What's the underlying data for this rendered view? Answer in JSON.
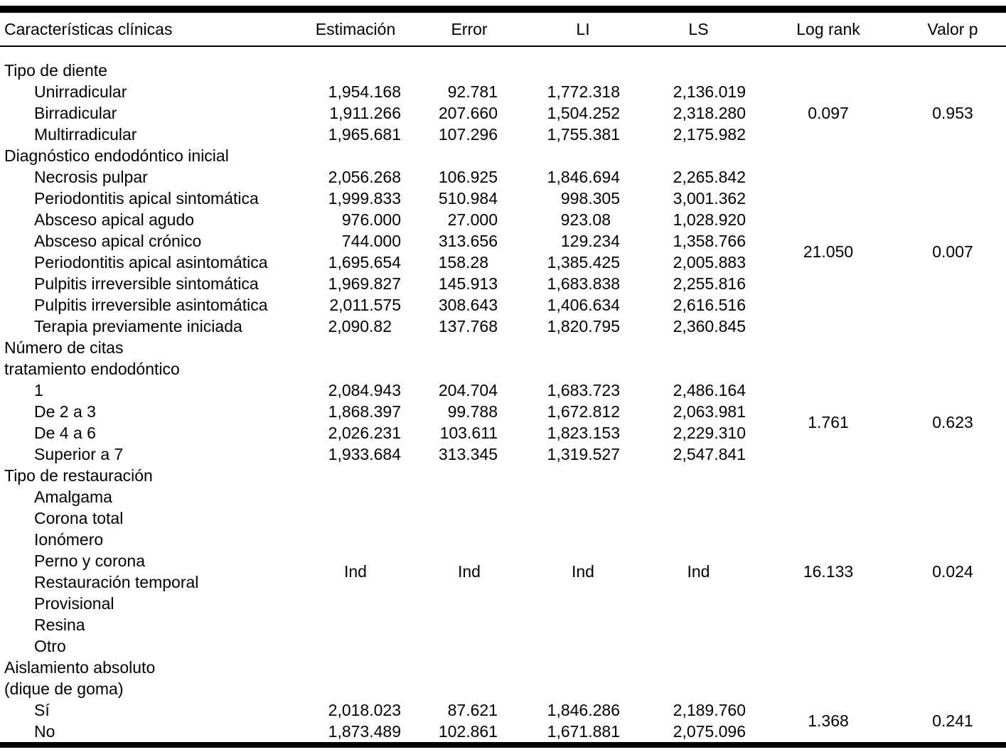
{
  "table": {
    "columns": [
      "Características clínicas",
      "Estimación",
      "Error",
      "LI",
      "LS",
      "Log rank",
      "Valor p"
    ],
    "groups": [
      {
        "label_lines": [
          "Tipo de diente"
        ],
        "rows": [
          {
            "label": "Unirradicular",
            "estimacion": "1,954.168",
            "error": "92.781",
            "li": "1,772.318",
            "ls": "2,136.019"
          },
          {
            "label": "Birradicular",
            "estimacion": "1,911.266",
            "error": "207.660",
            "li": "1,504.252",
            "ls": "2,318.280"
          },
          {
            "label": "Multirradicular",
            "estimacion": "1,965.681",
            "error": "107.296",
            "li": "1,755.381",
            "ls": "2,175.982"
          }
        ],
        "log_rank": "0.097",
        "valor_p": "0.953"
      },
      {
        "label_lines": [
          "Diagnóstico endodóntico inicial"
        ],
        "rows": [
          {
            "label": "Necrosis pulpar",
            "estimacion": "2,056.268",
            "error": "106.925",
            "li": "1,846.694",
            "ls": "2,265.842"
          },
          {
            "label": "Periodontitis apical sintomática",
            "estimacion": "1,999.833",
            "error": "510.984",
            "li": "998.305",
            "ls": "3,001.362"
          },
          {
            "label": "Absceso apical agudo",
            "estimacion": "976.000",
            "error": "27.000",
            "li": "923.08",
            "ls": "1,028.920"
          },
          {
            "label": "Absceso apical crónico",
            "estimacion": "744.000",
            "error": "313.656",
            "li": "129.234",
            "ls": "1,358.766"
          },
          {
            "label": "Periodontitis apical asintomática",
            "estimacion": "1,695.654",
            "error": "158.28",
            "li": "1,385.425",
            "ls": "2,005.883"
          },
          {
            "label": "Pulpitis irreversible sintomática",
            "estimacion": "1,969.827",
            "error": "145.913",
            "li": "1,683.838",
            "ls": "2,255.816"
          },
          {
            "label": "Pulpitis irreversible asintomática",
            "estimacion": "2,011.575",
            "error": "308.643",
            "li": "1,406.634",
            "ls": "2,616.516"
          },
          {
            "label": "Terapia previamente iniciada",
            "estimacion": "2,090.82",
            "error": "137.768",
            "li": "1,820.795",
            "ls": "2,360.845"
          }
        ],
        "log_rank": "21.050",
        "valor_p": "0.007"
      },
      {
        "label_lines": [
          "Número de citas",
          "tratamiento endodóntico"
        ],
        "rows": [
          {
            "label": "1",
            "estimacion": "2,084.943",
            "error": "204.704",
            "li": "1,683.723",
            "ls": "2,486.164"
          },
          {
            "label": "De 2 a 3",
            "estimacion": "1,868.397",
            "error": "99.788",
            "li": "1,672.812",
            "ls": "2,063.981"
          },
          {
            "label": "De 4 a 6",
            "estimacion": "2,026.231",
            "error": "103.611",
            "li": "1,823.153",
            "ls": "2,229.310"
          },
          {
            "label": "Superior a 7",
            "estimacion": "1,933.684",
            "error": "313.345",
            "li": "1,319.527",
            "ls": "2,547.841"
          }
        ],
        "log_rank": "1.761",
        "valor_p": "0.623"
      },
      {
        "label_lines": [
          "Tipo de restauración"
        ],
        "rows": [
          {
            "label": "Amalgama"
          },
          {
            "label": "Corona total"
          },
          {
            "label": "Ionómero"
          },
          {
            "label": "Perno y corona"
          },
          {
            "label": "Restauración temporal"
          },
          {
            "label": "Provisional"
          },
          {
            "label": "Resina"
          },
          {
            "label": "Otro"
          }
        ],
        "group_values": {
          "estimacion": "Ind",
          "error": "Ind",
          "li": "Ind",
          "ls": "Ind"
        },
        "log_rank": "16.133",
        "valor_p": "0.024"
      },
      {
        "label_lines": [
          "Aislamiento absoluto",
          "(dique de goma)"
        ],
        "rows": [
          {
            "label": "Sí",
            "estimacion": "2,018.023",
            "error": "87.621",
            "li": "1,846.286",
            "ls": "2,189.760"
          },
          {
            "label": "No",
            "estimacion": "1,873.489",
            "error": "102.861",
            "li": "1,671.881",
            "ls": "2,075.096"
          }
        ],
        "log_rank": "1.368",
        "valor_p": "0.241"
      }
    ]
  }
}
